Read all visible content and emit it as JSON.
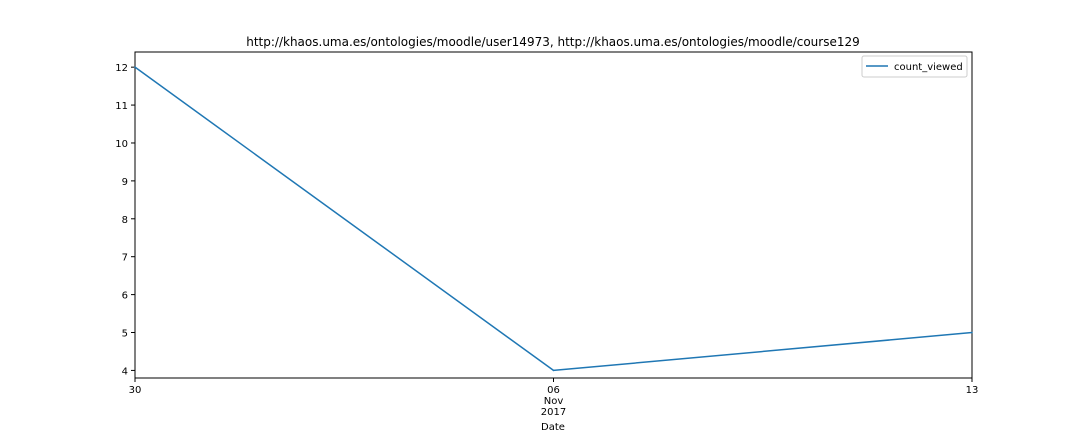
{
  "chart_data": {
    "type": "line",
    "title": "http://khaos.uma.es/ontologies/moodle/user14973, http://khaos.uma.es/ontologies/moodle/course129",
    "xlabel": "Date",
    "ylabel": "",
    "x": [
      "2017-10-30",
      "2017-11-06",
      "2017-11-13"
    ],
    "x_tick_labels": [
      {
        "lines": [
          "30"
        ]
      },
      {
        "lines": [
          "06",
          "Nov",
          "2017"
        ]
      },
      {
        "lines": [
          "13"
        ]
      }
    ],
    "ylim": [
      3.8,
      12.4
    ],
    "y_ticks": [
      4,
      5,
      6,
      7,
      8,
      9,
      10,
      11,
      12
    ],
    "series": [
      {
        "name": "count_viewed",
        "values": [
          12,
          4,
          5
        ],
        "color": "#1f77b4"
      }
    ],
    "legend": {
      "position": "top-right"
    },
    "grid": false
  }
}
